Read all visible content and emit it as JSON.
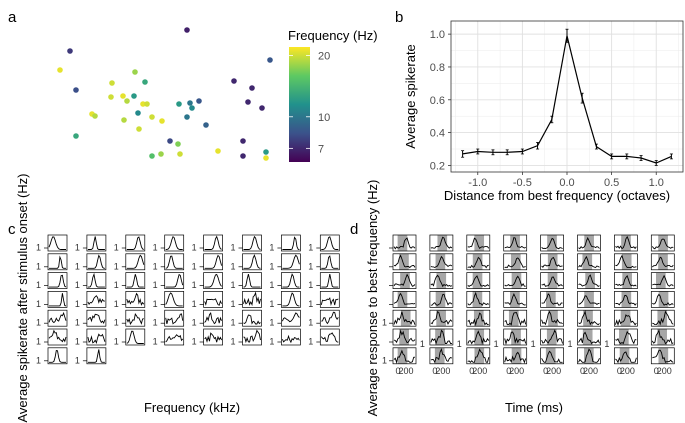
{
  "panels": {
    "a": "a",
    "b": "b",
    "c": "c",
    "d": "d"
  },
  "chart_data": [
    {
      "type": "scatter",
      "panel": "a",
      "title": "",
      "xlabel": "",
      "ylabel": "",
      "legend": {
        "title": "Frequency (Hz)",
        "ticks": [
          "20",
          "10",
          "7"
        ],
        "tick_values": [
          20,
          10,
          7
        ],
        "range": [
          6,
          22
        ],
        "scale": "log",
        "placement": "right"
      },
      "points": [
        {
          "x": 70,
          "y": 51,
          "f": 7.5
        },
        {
          "x": 187,
          "y": 30,
          "f": 6.8
        },
        {
          "x": 60,
          "y": 70,
          "f": 21
        },
        {
          "x": 76,
          "y": 90,
          "f": 8.2
        },
        {
          "x": 135,
          "y": 72,
          "f": 18
        },
        {
          "x": 112,
          "y": 83,
          "f": 20
        },
        {
          "x": 145,
          "y": 82,
          "f": 13
        },
        {
          "x": 111,
          "y": 97,
          "f": 20
        },
        {
          "x": 123,
          "y": 96,
          "f": 21
        },
        {
          "x": 127,
          "y": 101,
          "f": 19
        },
        {
          "x": 134,
          "y": 96,
          "f": 12
        },
        {
          "x": 143,
          "y": 104,
          "f": 21
        },
        {
          "x": 147,
          "y": 104,
          "f": 20
        },
        {
          "x": 138,
          "y": 113,
          "f": 11
        },
        {
          "x": 92,
          "y": 114,
          "f": 21
        },
        {
          "x": 95,
          "y": 116,
          "f": 19
        },
        {
          "x": 124,
          "y": 120,
          "f": 19
        },
        {
          "x": 152,
          "y": 117,
          "f": 20
        },
        {
          "x": 162,
          "y": 121,
          "f": 21
        },
        {
          "x": 139,
          "y": 129,
          "f": 20
        },
        {
          "x": 179,
          "y": 104,
          "f": 12
        },
        {
          "x": 190,
          "y": 103,
          "f": 10
        },
        {
          "x": 199,
          "y": 101,
          "f": 8.5
        },
        {
          "x": 192,
          "y": 108,
          "f": 11
        },
        {
          "x": 187,
          "y": 117,
          "f": 10
        },
        {
          "x": 206,
          "y": 125,
          "f": 9
        },
        {
          "x": 234,
          "y": 81,
          "f": 7
        },
        {
          "x": 270,
          "y": 60,
          "f": 8.5
        },
        {
          "x": 252,
          "y": 88,
          "f": 7
        },
        {
          "x": 248,
          "y": 102,
          "f": 7
        },
        {
          "x": 262,
          "y": 108,
          "f": 7
        },
        {
          "x": 76,
          "y": 136,
          "f": 13
        },
        {
          "x": 170,
          "y": 141,
          "f": 8
        },
        {
          "x": 178,
          "y": 144,
          "f": 17
        },
        {
          "x": 161,
          "y": 154,
          "f": 18
        },
        {
          "x": 152,
          "y": 156,
          "f": 15
        },
        {
          "x": 180,
          "y": 154,
          "f": 20
        },
        {
          "x": 218,
          "y": 151,
          "f": 21
        },
        {
          "x": 243,
          "y": 141,
          "f": 7
        },
        {
          "x": 243,
          "y": 156,
          "f": 7
        },
        {
          "x": 266,
          "y": 152,
          "f": 12
        },
        {
          "x": 266,
          "y": 158,
          "f": 21
        }
      ]
    },
    {
      "type": "line",
      "panel": "b",
      "title": "",
      "xlabel": "Distance from best frequency (octaves)",
      "ylabel": "Average spikerate",
      "xlim": [
        -1.3,
        1.3
      ],
      "ylim": [
        0.16,
        1.08
      ],
      "xticks": [
        -1.0,
        -0.5,
        0.0,
        0.5,
        1.0
      ],
      "xtick_labels": [
        "-1.0",
        "-0.5",
        "0.0",
        "0.5",
        "1.0"
      ],
      "yticks": [
        0.2,
        0.4,
        0.6,
        0.8,
        1.0
      ],
      "ytick_labels": [
        "0.2",
        "0.4",
        "0.6",
        "0.8",
        "1.0"
      ],
      "grid": true,
      "x": [
        -1.17,
        -1.0,
        -0.83,
        -0.67,
        -0.5,
        -0.33,
        -0.17,
        0.0,
        0.17,
        0.33,
        0.5,
        0.67,
        0.83,
        1.0,
        1.17
      ],
      "y": [
        0.27,
        0.285,
        0.28,
        0.28,
        0.285,
        0.32,
        0.48,
        0.99,
        0.61,
        0.315,
        0.255,
        0.255,
        0.245,
        0.215,
        0.255
      ],
      "err": [
        0.02,
        0.015,
        0.015,
        0.015,
        0.015,
        0.02,
        0.02,
        0.04,
        0.03,
        0.015,
        0.015,
        0.015,
        0.015,
        0.015,
        0.015
      ]
    },
    {
      "type": "line",
      "panel": "c",
      "title": "",
      "xlabel": "Frequency (kHz)",
      "ylabel": "Average spikerate after stimulus onset (Hz)",
      "small_multiples": true,
      "columns": 8,
      "rows": 7,
      "count": 50,
      "ytick_label": "1"
    },
    {
      "type": "line",
      "panel": "d",
      "title": "",
      "xlabel": "Time (ms)",
      "ylabel": "Average response to best frequency (Hz)",
      "small_multiples": true,
      "columns": 8,
      "rows": 7,
      "count": 56,
      "ytick_label": "1",
      "xtick_labels": [
        "0",
        "200"
      ],
      "shaded_window": "stimulus"
    }
  ]
}
